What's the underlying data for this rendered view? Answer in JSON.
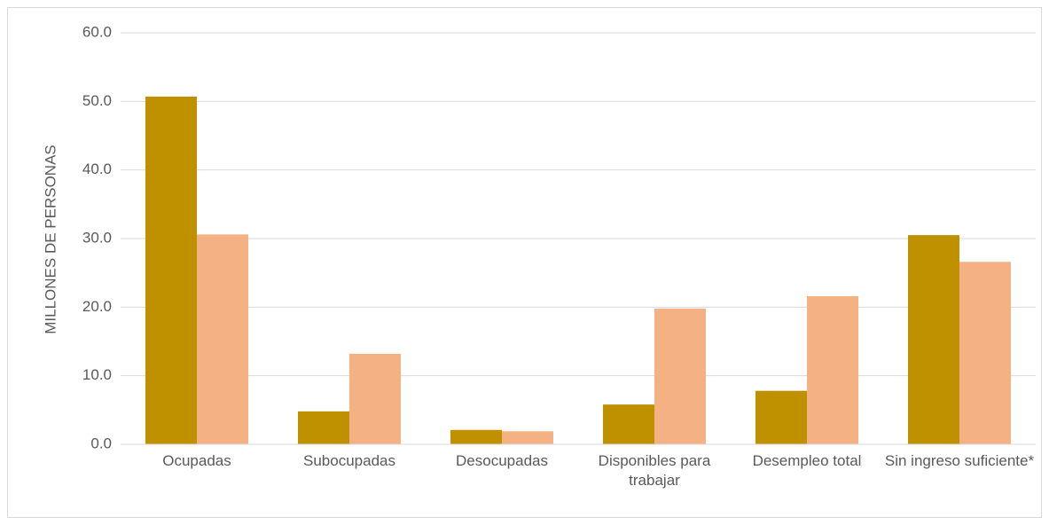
{
  "chart_data": {
    "type": "bar",
    "y_label": "MILLONES DE PERSONAS",
    "categories": [
      "Ocupadas",
      "Subocupadas",
      "Desocupadas",
      "Disponibles para trabajar",
      "Desempleo total",
      "Sin ingreso suficiente*"
    ],
    "series": [
      {
        "color": "#bf9000",
        "values": [
          50.7,
          4.8,
          2.1,
          5.8,
          7.8,
          30.5
        ]
      },
      {
        "color": "#f4b183",
        "values": [
          30.6,
          13.2,
          1.9,
          19.8,
          21.6,
          26.6
        ]
      }
    ],
    "ylim": [
      0,
      60
    ],
    "yticks": [
      {
        "value": 0,
        "label": "0.0"
      },
      {
        "value": 10,
        "label": "10.0"
      },
      {
        "value": 20,
        "label": "20.0"
      },
      {
        "value": 30,
        "label": "30.0"
      },
      {
        "value": 40,
        "label": "40.0"
      },
      {
        "value": 50,
        "label": "50.0"
      },
      {
        "value": 60,
        "label": "60.0"
      }
    ],
    "grid": true
  }
}
